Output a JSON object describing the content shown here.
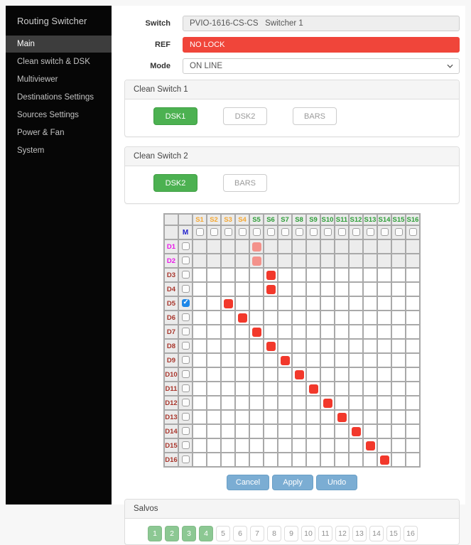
{
  "sidebar": {
    "title": "Routing Switcher",
    "items": [
      {
        "label": "Main",
        "active": true
      },
      {
        "label": "Clean switch & DSK",
        "active": false
      },
      {
        "label": "Multiviewer",
        "active": false
      },
      {
        "label": "Destinations Settings",
        "active": false
      },
      {
        "label": "Sources Settings",
        "active": false
      },
      {
        "label": "Power & Fan",
        "active": false
      },
      {
        "label": "System",
        "active": false
      }
    ]
  },
  "form": {
    "switch": {
      "label": "Switch",
      "value": "PVIO-1616-CS-CS   Switcher 1"
    },
    "ref": {
      "label": "REF",
      "value": "NO LOCK"
    },
    "mode": {
      "label": "Mode",
      "value": "ON LINE"
    }
  },
  "clean_switch_1": {
    "title": "Clean Switch 1",
    "buttons": [
      {
        "label": "DSK1",
        "active": true
      },
      {
        "label": "DSK2",
        "active": false
      },
      {
        "label": "BARS",
        "active": false
      }
    ]
  },
  "clean_switch_2": {
    "title": "Clean Switch 2",
    "buttons": [
      {
        "label": "DSK2",
        "active": true
      },
      {
        "label": "BARS",
        "active": false
      }
    ]
  },
  "matrix": {
    "columns": [
      "S1",
      "S2",
      "S3",
      "S4",
      "S5",
      "S6",
      "S7",
      "S8",
      "S9",
      "S10",
      "S11",
      "S12",
      "S13",
      "S14",
      "S15",
      "S16"
    ],
    "orange_count": 4,
    "monitor_label": "M",
    "rows": [
      {
        "label": "D1",
        "label_color": "magenta",
        "checked": false,
        "dimmed": true,
        "route": "S5",
        "route_style": "pending"
      },
      {
        "label": "D2",
        "label_color": "magenta",
        "checked": false,
        "dimmed": true,
        "route": "S5",
        "route_style": "pending"
      },
      {
        "label": "D3",
        "label_color": "red",
        "checked": false,
        "dimmed": false,
        "route": "S6",
        "route_style": "active"
      },
      {
        "label": "D4",
        "label_color": "red",
        "checked": false,
        "dimmed": false,
        "route": "S6",
        "route_style": "active"
      },
      {
        "label": "D5",
        "label_color": "red",
        "checked": true,
        "dimmed": false,
        "route": "S3",
        "route_style": "active"
      },
      {
        "label": "D6",
        "label_color": "red",
        "checked": false,
        "dimmed": false,
        "route": "S4",
        "route_style": "active"
      },
      {
        "label": "D7",
        "label_color": "red",
        "checked": false,
        "dimmed": false,
        "route": "S5",
        "route_style": "active"
      },
      {
        "label": "D8",
        "label_color": "red",
        "checked": false,
        "dimmed": false,
        "route": "S6",
        "route_style": "active"
      },
      {
        "label": "D9",
        "label_color": "red",
        "checked": false,
        "dimmed": false,
        "route": "S7",
        "route_style": "active"
      },
      {
        "label": "D10",
        "label_color": "red",
        "checked": false,
        "dimmed": false,
        "route": "S8",
        "route_style": "active"
      },
      {
        "label": "D11",
        "label_color": "red",
        "checked": false,
        "dimmed": false,
        "route": "S9",
        "route_style": "active"
      },
      {
        "label": "D12",
        "label_color": "red",
        "checked": false,
        "dimmed": false,
        "route": "S10",
        "route_style": "active"
      },
      {
        "label": "D13",
        "label_color": "red",
        "checked": false,
        "dimmed": false,
        "route": "S11",
        "route_style": "active"
      },
      {
        "label": "D14",
        "label_color": "red",
        "checked": false,
        "dimmed": false,
        "route": "S12",
        "route_style": "active"
      },
      {
        "label": "D15",
        "label_color": "red",
        "checked": false,
        "dimmed": false,
        "route": "S13",
        "route_style": "active"
      },
      {
        "label": "D16",
        "label_color": "red",
        "checked": false,
        "dimmed": false,
        "route": "S14",
        "route_style": "active"
      }
    ]
  },
  "actions": [
    {
      "label": "Cancel"
    },
    {
      "label": "Apply"
    },
    {
      "label": "Undo"
    }
  ],
  "salvos": {
    "title": "Salvos",
    "buttons": [
      {
        "label": "1",
        "active": true
      },
      {
        "label": "2",
        "active": true
      },
      {
        "label": "3",
        "active": true
      },
      {
        "label": "4",
        "active": true
      },
      {
        "label": "5",
        "active": false
      },
      {
        "label": "6",
        "active": false
      },
      {
        "label": "7",
        "active": false
      },
      {
        "label": "8",
        "active": false
      },
      {
        "label": "9",
        "active": false
      },
      {
        "label": "10",
        "active": false
      },
      {
        "label": "11",
        "active": false
      },
      {
        "label": "12",
        "active": false
      },
      {
        "label": "13",
        "active": false
      },
      {
        "label": "14",
        "active": false
      },
      {
        "label": "15",
        "active": false
      },
      {
        "label": "16",
        "active": false
      }
    ]
  },
  "colors": {
    "red": "#f0453a",
    "green": "#4cb151",
    "blue": "#7badd3",
    "salvo_green": "#8cc893",
    "col_orange": "#f5a833",
    "col_green": "#2e9e38",
    "row_magenta": "#e818e8",
    "row_red": "#a8352b",
    "m_blue": "#2222cc",
    "route_active": "#f2382b",
    "route_pending": "#f4928b",
    "check_blue": "#1e87e8"
  }
}
